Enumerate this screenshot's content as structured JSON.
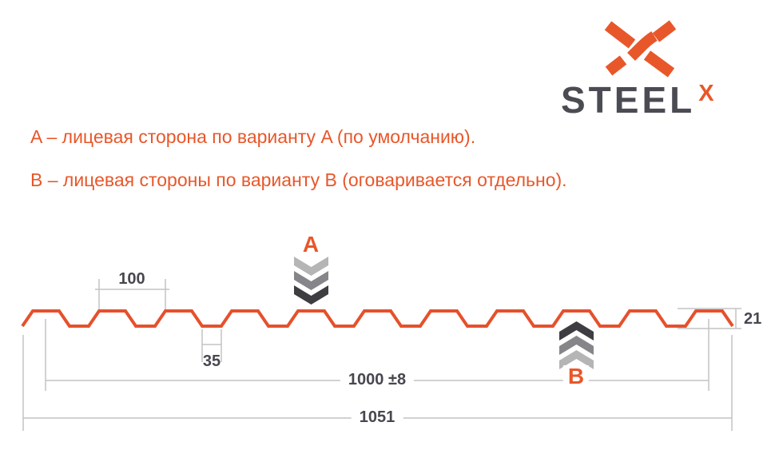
{
  "logo": {
    "wordmark": "STEEL",
    "superscript": "X"
  },
  "legend": {
    "line_a": "A – лицевая сторона по варианту A (по умолчанию).",
    "line_b": "B – лицевая стороны по варианту B (оговаривается отдельно)."
  },
  "diagram": {
    "side_a_label": "A",
    "side_b_label": "B",
    "dimensions": {
      "rib_pitch": "100",
      "rib_bottom_width": "35",
      "profile_height": "21",
      "working_width": "1000 ±8",
      "overall_width": "1051"
    }
  },
  "colors": {
    "accent": "#E8572A",
    "profile": "#E5512C",
    "wordmark": "#4B4C53",
    "dim_text": "#47474F",
    "dim_line": "#C3C3C3",
    "chevron_light": "#B5B5B5",
    "chevron_mid": "#85858A",
    "chevron_dark": "#3E3E42"
  }
}
